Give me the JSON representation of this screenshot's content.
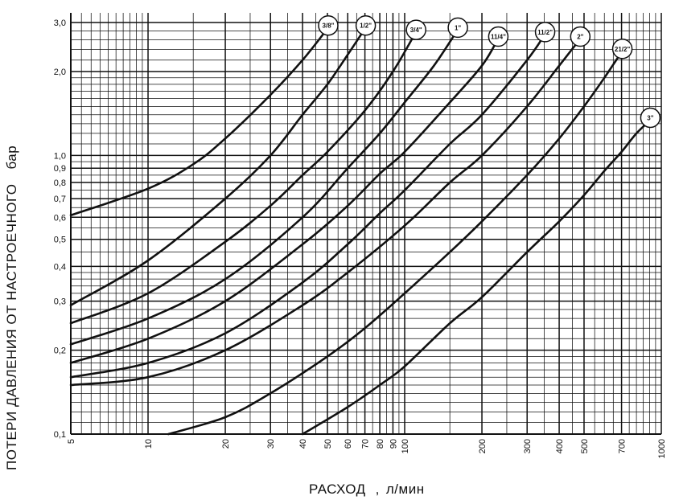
{
  "chart_data": {
    "type": "line",
    "xscale": "log",
    "yscale": "log",
    "xlim": [
      5,
      1000
    ],
    "ylim": [
      0.1,
      3.0
    ],
    "grid": true,
    "ylabel_main": "ПОТЕРИ ДАВЛЕНИЯ ОТ НАСТРОЕЧНОГО",
    "ylabel_unit": "бар",
    "xlabel_main": "РАСХОД",
    "xlabel_sep": ",",
    "xlabel_unit": "л/мин",
    "x_ticks": [
      {
        "v": 5,
        "label": "5"
      },
      {
        "v": 10,
        "label": "10"
      },
      {
        "v": 20,
        "label": "20"
      },
      {
        "v": 30,
        "label": "30"
      },
      {
        "v": 40,
        "label": "40"
      },
      {
        "v": 50,
        "label": "50"
      },
      {
        "v": 60,
        "label": "60"
      },
      {
        "v": 70,
        "label": "70"
      },
      {
        "v": 80,
        "label": "80"
      },
      {
        "v": 90,
        "label": "90"
      },
      {
        "v": 100,
        "label": "100"
      },
      {
        "v": 200,
        "label": "200"
      },
      {
        "v": 300,
        "label": "300"
      },
      {
        "v": 400,
        "label": "400"
      },
      {
        "v": 500,
        "label": "500"
      },
      {
        "v": 700,
        "label": "700"
      },
      {
        "v": 1000,
        "label": "1000"
      }
    ],
    "y_ticks": [
      {
        "v": 0.1,
        "label": "0,1"
      },
      {
        "v": 0.2,
        "label": "0,2"
      },
      {
        "v": 0.3,
        "label": "0,3"
      },
      {
        "v": 0.4,
        "label": "0,4"
      },
      {
        "v": 0.5,
        "label": "0,5"
      },
      {
        "v": 0.6,
        "label": "0,6"
      },
      {
        "v": 0.7,
        "label": "0,7"
      },
      {
        "v": 0.8,
        "label": "0,8"
      },
      {
        "v": 0.9,
        "label": "0,9"
      },
      {
        "v": 1.0,
        "label": "1,0"
      },
      {
        "v": 2.0,
        "label": "2,0"
      },
      {
        "v": 3.0,
        "label": "3,0"
      }
    ],
    "series": [
      {
        "name": "3/8\"",
        "x": [
          5,
          10,
          15,
          20,
          30,
          40,
          50
        ],
        "y": [
          0.61,
          0.76,
          0.93,
          1.15,
          1.65,
          2.2,
          2.85
        ]
      },
      {
        "name": "1/2\"",
        "x": [
          5,
          10,
          20,
          30,
          40,
          50,
          60,
          70
        ],
        "y": [
          0.29,
          0.42,
          0.7,
          1.0,
          1.4,
          1.8,
          2.3,
          2.85
        ]
      },
      {
        "name": "3/4\"",
        "x": [
          5,
          10,
          20,
          30,
          40,
          50,
          70,
          90,
          110
        ],
        "y": [
          0.25,
          0.32,
          0.49,
          0.66,
          0.85,
          1.03,
          1.45,
          2.0,
          2.75
        ]
      },
      {
        "name": "1\"",
        "x": [
          5,
          10,
          20,
          40,
          60,
          80,
          100,
          130,
          160
        ],
        "y": [
          0.21,
          0.26,
          0.36,
          0.6,
          0.9,
          1.2,
          1.55,
          2.1,
          2.8
        ]
      },
      {
        "name": "11/4\"",
        "x": [
          5,
          10,
          20,
          40,
          60,
          80,
          100,
          150,
          200,
          230
        ],
        "y": [
          0.18,
          0.22,
          0.3,
          0.48,
          0.66,
          0.86,
          1.03,
          1.55,
          2.1,
          2.6
        ]
      },
      {
        "name": "11/2\"",
        "x": [
          5,
          10,
          20,
          40,
          60,
          80,
          100,
          150,
          200,
          300,
          350
        ],
        "y": [
          0.16,
          0.18,
          0.23,
          0.35,
          0.48,
          0.62,
          0.75,
          1.1,
          1.4,
          2.2,
          2.7
        ]
      },
      {
        "name": "2\"",
        "x": [
          5,
          10,
          20,
          40,
          60,
          100,
          150,
          200,
          300,
          400,
          480
        ],
        "y": [
          0.15,
          0.16,
          0.2,
          0.29,
          0.38,
          0.56,
          0.8,
          1.0,
          1.5,
          2.1,
          2.6
        ]
      },
      {
        "name": "21/2\"",
        "x": [
          12,
          20,
          30,
          50,
          70,
          100,
          150,
          200,
          300,
          400,
          500,
          600,
          700
        ],
        "y": [
          0.1,
          0.115,
          0.14,
          0.19,
          0.24,
          0.32,
          0.45,
          0.58,
          0.85,
          1.15,
          1.5,
          1.9,
          2.35
        ]
      },
      {
        "name": "3\"",
        "x": [
          40,
          60,
          80,
          100,
          150,
          200,
          300,
          400,
          500,
          600,
          700,
          800,
          900
        ],
        "y": [
          0.1,
          0.125,
          0.15,
          0.175,
          0.25,
          0.31,
          0.45,
          0.58,
          0.72,
          0.88,
          1.03,
          1.2,
          1.33
        ]
      }
    ]
  }
}
